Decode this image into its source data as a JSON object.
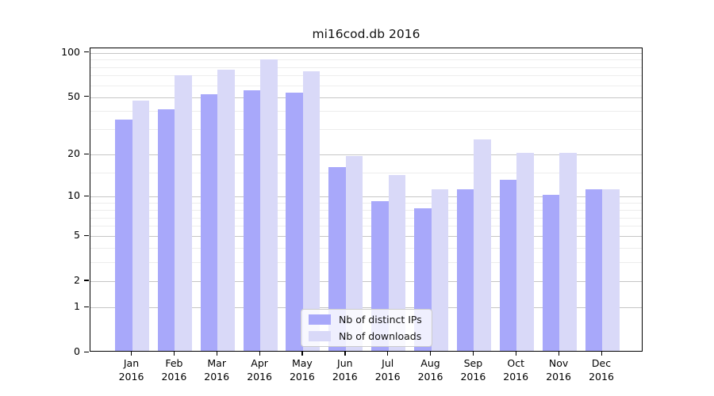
{
  "chart_data": {
    "type": "bar",
    "title": "mi16cod.db 2016",
    "categories": [
      "Jan",
      "Feb",
      "Mar",
      "Apr",
      "May",
      "Jun",
      "Jul",
      "Aug",
      "Sep",
      "Oct",
      "Nov",
      "Dec"
    ],
    "category_year": "2016",
    "series": [
      {
        "name": "Nb of distinct IPs",
        "color": "#a8a8fa",
        "values": [
          34,
          40,
          51,
          54,
          52,
          16,
          9,
          8,
          11,
          13,
          10,
          11
        ]
      },
      {
        "name": "Nb of downloads",
        "color": "#d9d9f8",
        "values": [
          46,
          69,
          75,
          88,
          73,
          19,
          14,
          11,
          25,
          20,
          20,
          11
        ]
      }
    ],
    "yscale": "log1p",
    "ylim": [
      0,
      107
    ],
    "y_ticks": [
      100,
      50,
      20,
      10,
      5,
      2,
      1,
      0
    ],
    "y_minor_gridlines": [
      3,
      4,
      6,
      7,
      8,
      9,
      15,
      30,
      40,
      60,
      70,
      80,
      90
    ],
    "grid": true,
    "legend_position": "lower-center-inside"
  }
}
